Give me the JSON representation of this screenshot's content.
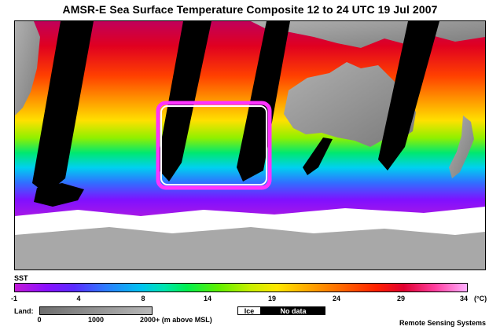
{
  "title": "AMSR-E Sea Surface Temperature Composite  12 to 24 UTC  19 Jul 2007",
  "legend": {
    "sst_label": "SST",
    "ticks": [
      "-1",
      "4",
      "8",
      "14",
      "19",
      "24",
      "29",
      "34"
    ],
    "unit": "(°C)",
    "land_label": "Land:",
    "land_ticks": [
      "0",
      "1000",
      "2000+ (m above MSL)"
    ],
    "ice_label": "Ice",
    "nodata_label": "No data"
  },
  "credit": "Remote Sensing Systems",
  "colors": {
    "highlight_box": "#ff33ff",
    "land": "#9a9a9a",
    "ice": "#ffffff",
    "no_data": "#000000"
  }
}
